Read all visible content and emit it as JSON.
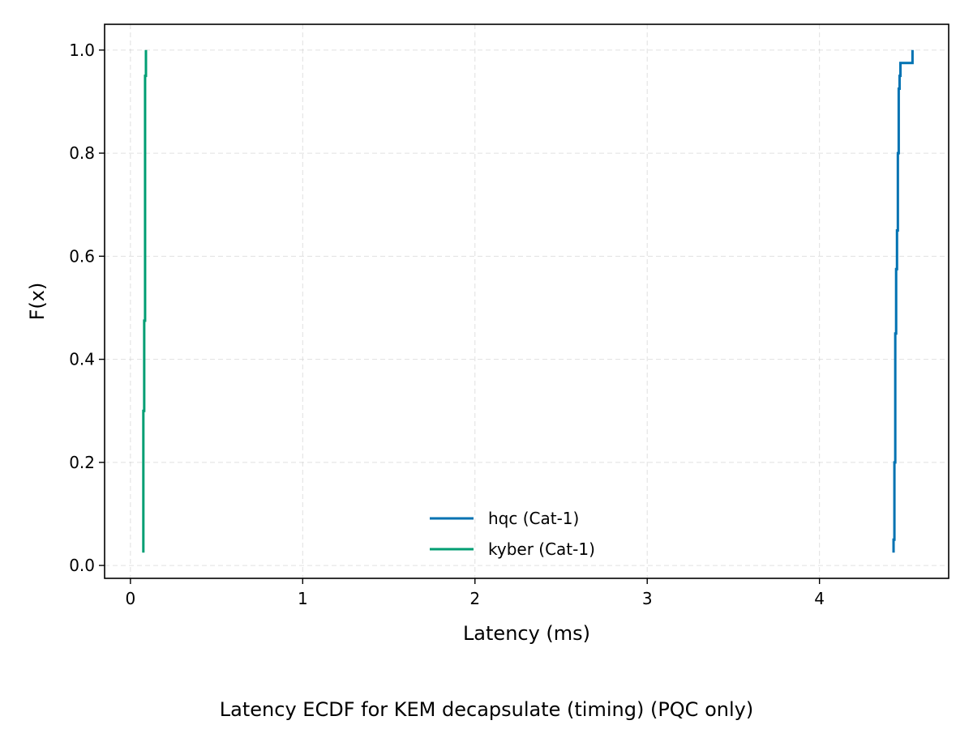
{
  "chart_data": {
    "type": "line",
    "caption": "Latency ECDF for KEM decapsulate (timing) (PQC only)",
    "xlabel": "Latency (ms)",
    "ylabel": "F(x)",
    "xlim": [
      -0.15,
      4.75
    ],
    "ylim": [
      -0.025,
      1.05
    ],
    "x_ticks": [
      0,
      1,
      2,
      3,
      4
    ],
    "y_ticks": [
      0.0,
      0.2,
      0.4,
      0.6,
      0.8,
      1.0
    ],
    "x_tick_labels": [
      "0",
      "1",
      "2",
      "3",
      "4"
    ],
    "y_tick_labels": [
      "0.0",
      "0.2",
      "0.4",
      "0.6",
      "0.8",
      "1.0"
    ],
    "grid": true,
    "legend_position": "bottom-center",
    "series": [
      {
        "name": "hqc (Cat-1)",
        "color": "#0072b2",
        "points": [
          [
            4.43,
            0.025
          ],
          [
            4.43,
            0.05
          ],
          [
            4.435,
            0.05
          ],
          [
            4.435,
            0.2
          ],
          [
            4.44,
            0.2
          ],
          [
            4.44,
            0.45
          ],
          [
            4.445,
            0.45
          ],
          [
            4.445,
            0.575
          ],
          [
            4.45,
            0.575
          ],
          [
            4.45,
            0.65
          ],
          [
            4.455,
            0.65
          ],
          [
            4.455,
            0.8
          ],
          [
            4.46,
            0.8
          ],
          [
            4.46,
            0.925
          ],
          [
            4.465,
            0.925
          ],
          [
            4.465,
            0.95
          ],
          [
            4.47,
            0.95
          ],
          [
            4.47,
            0.975
          ],
          [
            4.54,
            0.975
          ],
          [
            4.54,
            1.0
          ]
        ]
      },
      {
        "name": "kyber (Cat-1)",
        "color": "#009e73",
        "points": [
          [
            0.075,
            0.025
          ],
          [
            0.075,
            0.3
          ],
          [
            0.08,
            0.3
          ],
          [
            0.08,
            0.475
          ],
          [
            0.085,
            0.475
          ],
          [
            0.085,
            0.95
          ],
          [
            0.09,
            0.95
          ],
          [
            0.09,
            1.0
          ]
        ]
      }
    ]
  }
}
